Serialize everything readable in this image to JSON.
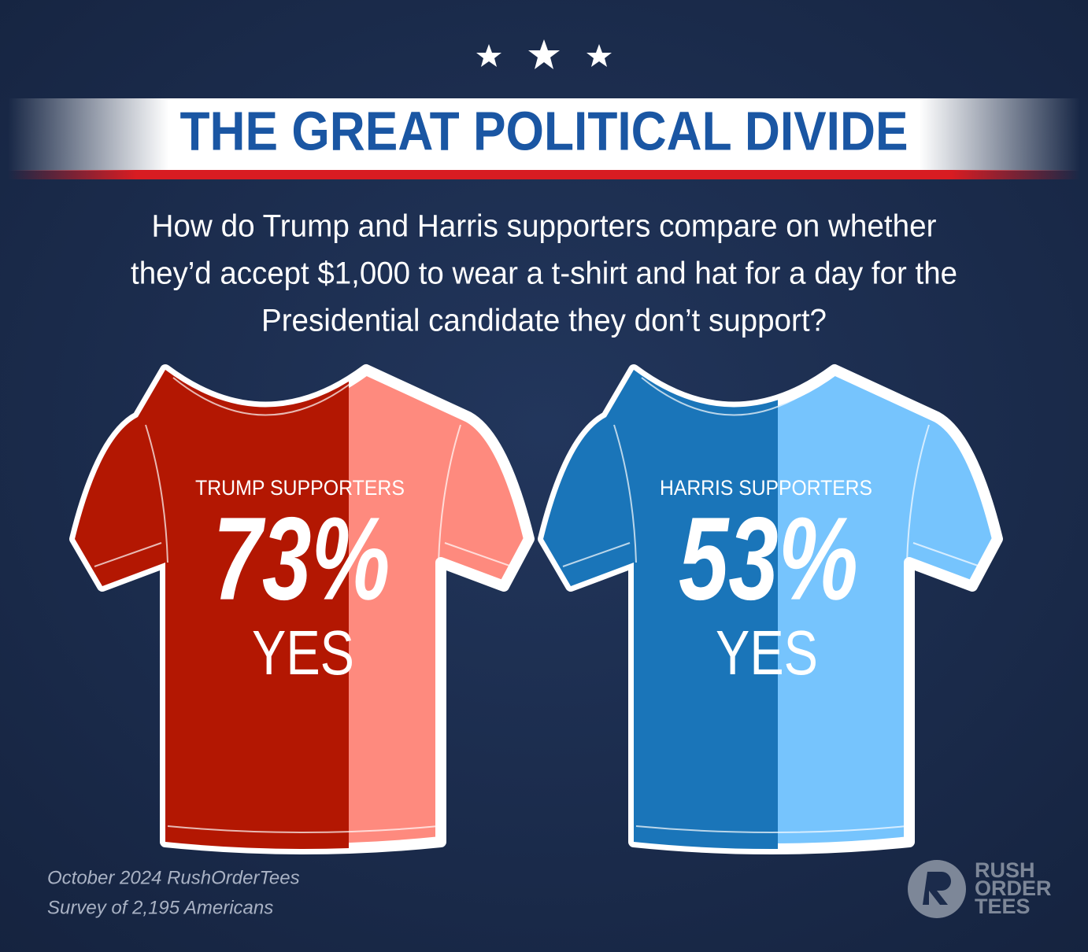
{
  "title": "THE GREAT POLITICAL DIVIDE",
  "question": [
    "How do Trump and Harris supporters compare on whether",
    "they’d accept $1,000 to wear a t-shirt and hat for a day for the",
    "Presidential candidate they don’t support?"
  ],
  "shirts": [
    {
      "label": "TRUMP SUPPORTERS",
      "percent": "73%",
      "answer": "YES"
    },
    {
      "label": "HARRIS SUPPORTERS",
      "percent": "53%",
      "answer": "YES"
    }
  ],
  "source": [
    "October 2024 RushOrderTees",
    "Survey of 2,195 Americans"
  ],
  "logo": [
    "RUSH",
    "ORDER",
    "TEES"
  ]
}
